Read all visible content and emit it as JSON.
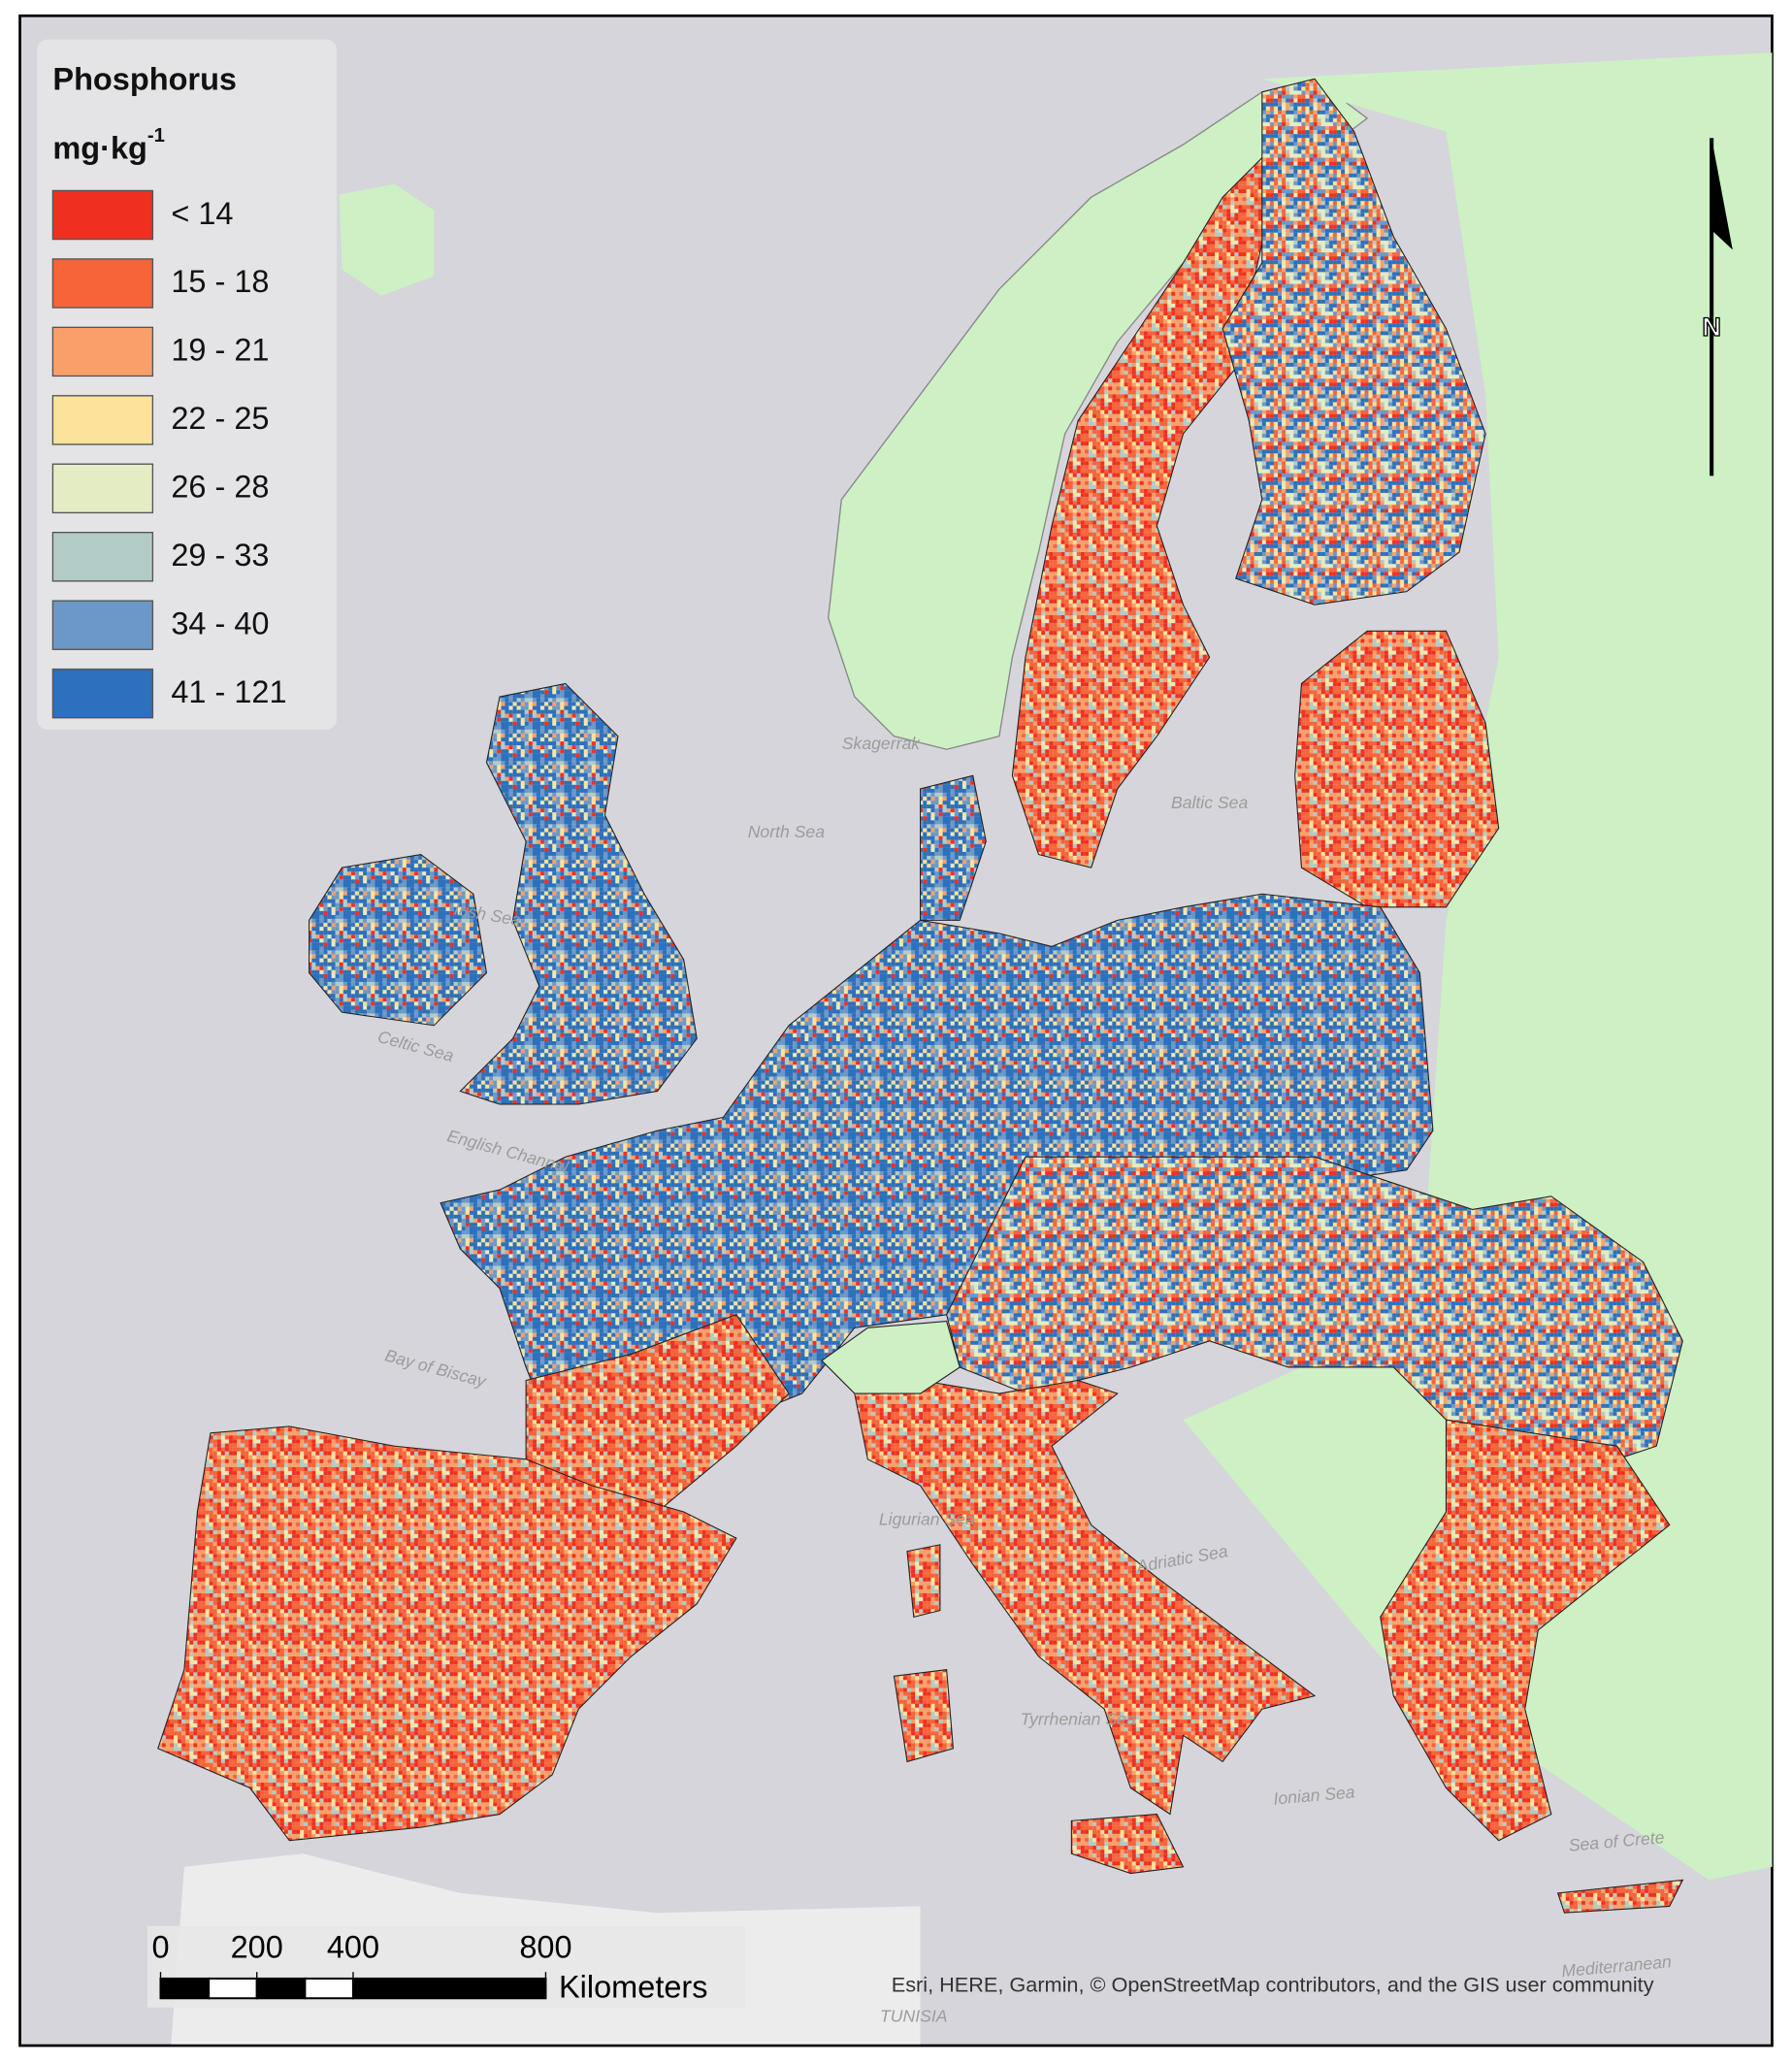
{
  "legend": {
    "title": "Phosphorus",
    "unit": "mg·kg",
    "unit_exponent": "-1",
    "items": [
      {
        "label": "< 14",
        "color": "#f0301f"
      },
      {
        "label": "15 - 18",
        "color": "#f7643a"
      },
      {
        "label": "19 - 21",
        "color": "#fb9f6a"
      },
      {
        "label": "22 - 25",
        "color": "#fde29c"
      },
      {
        "label": "26 - 28",
        "color": "#e4ecc4"
      },
      {
        "label": "29 - 33",
        "color": "#b3cbc7"
      },
      {
        "label": "34 - 40",
        "color": "#6b98c8"
      },
      {
        "label": "41 - 121",
        "color": "#2d70bb"
      }
    ]
  },
  "north_arrow": {
    "label": "N"
  },
  "scale_bar": {
    "ticks": [
      0,
      200,
      400,
      800
    ],
    "unit": "Kilometers"
  },
  "sea_labels": [
    "North Sea",
    "Irish Sea",
    "Celtic Sea",
    "English Channel",
    "Bay of Biscay",
    "Ligurian Sea",
    "Adriatic Sea",
    "Tyrrhenian Sea",
    "Ionian Sea",
    "Sea of Crete",
    "Mediterranean",
    "Baltic Sea",
    "Skagerrak",
    "TUNISIA"
  ],
  "attribution": "Esri, HERE, Garmin, © OpenStreetMap contributors, and the GIS user community"
}
